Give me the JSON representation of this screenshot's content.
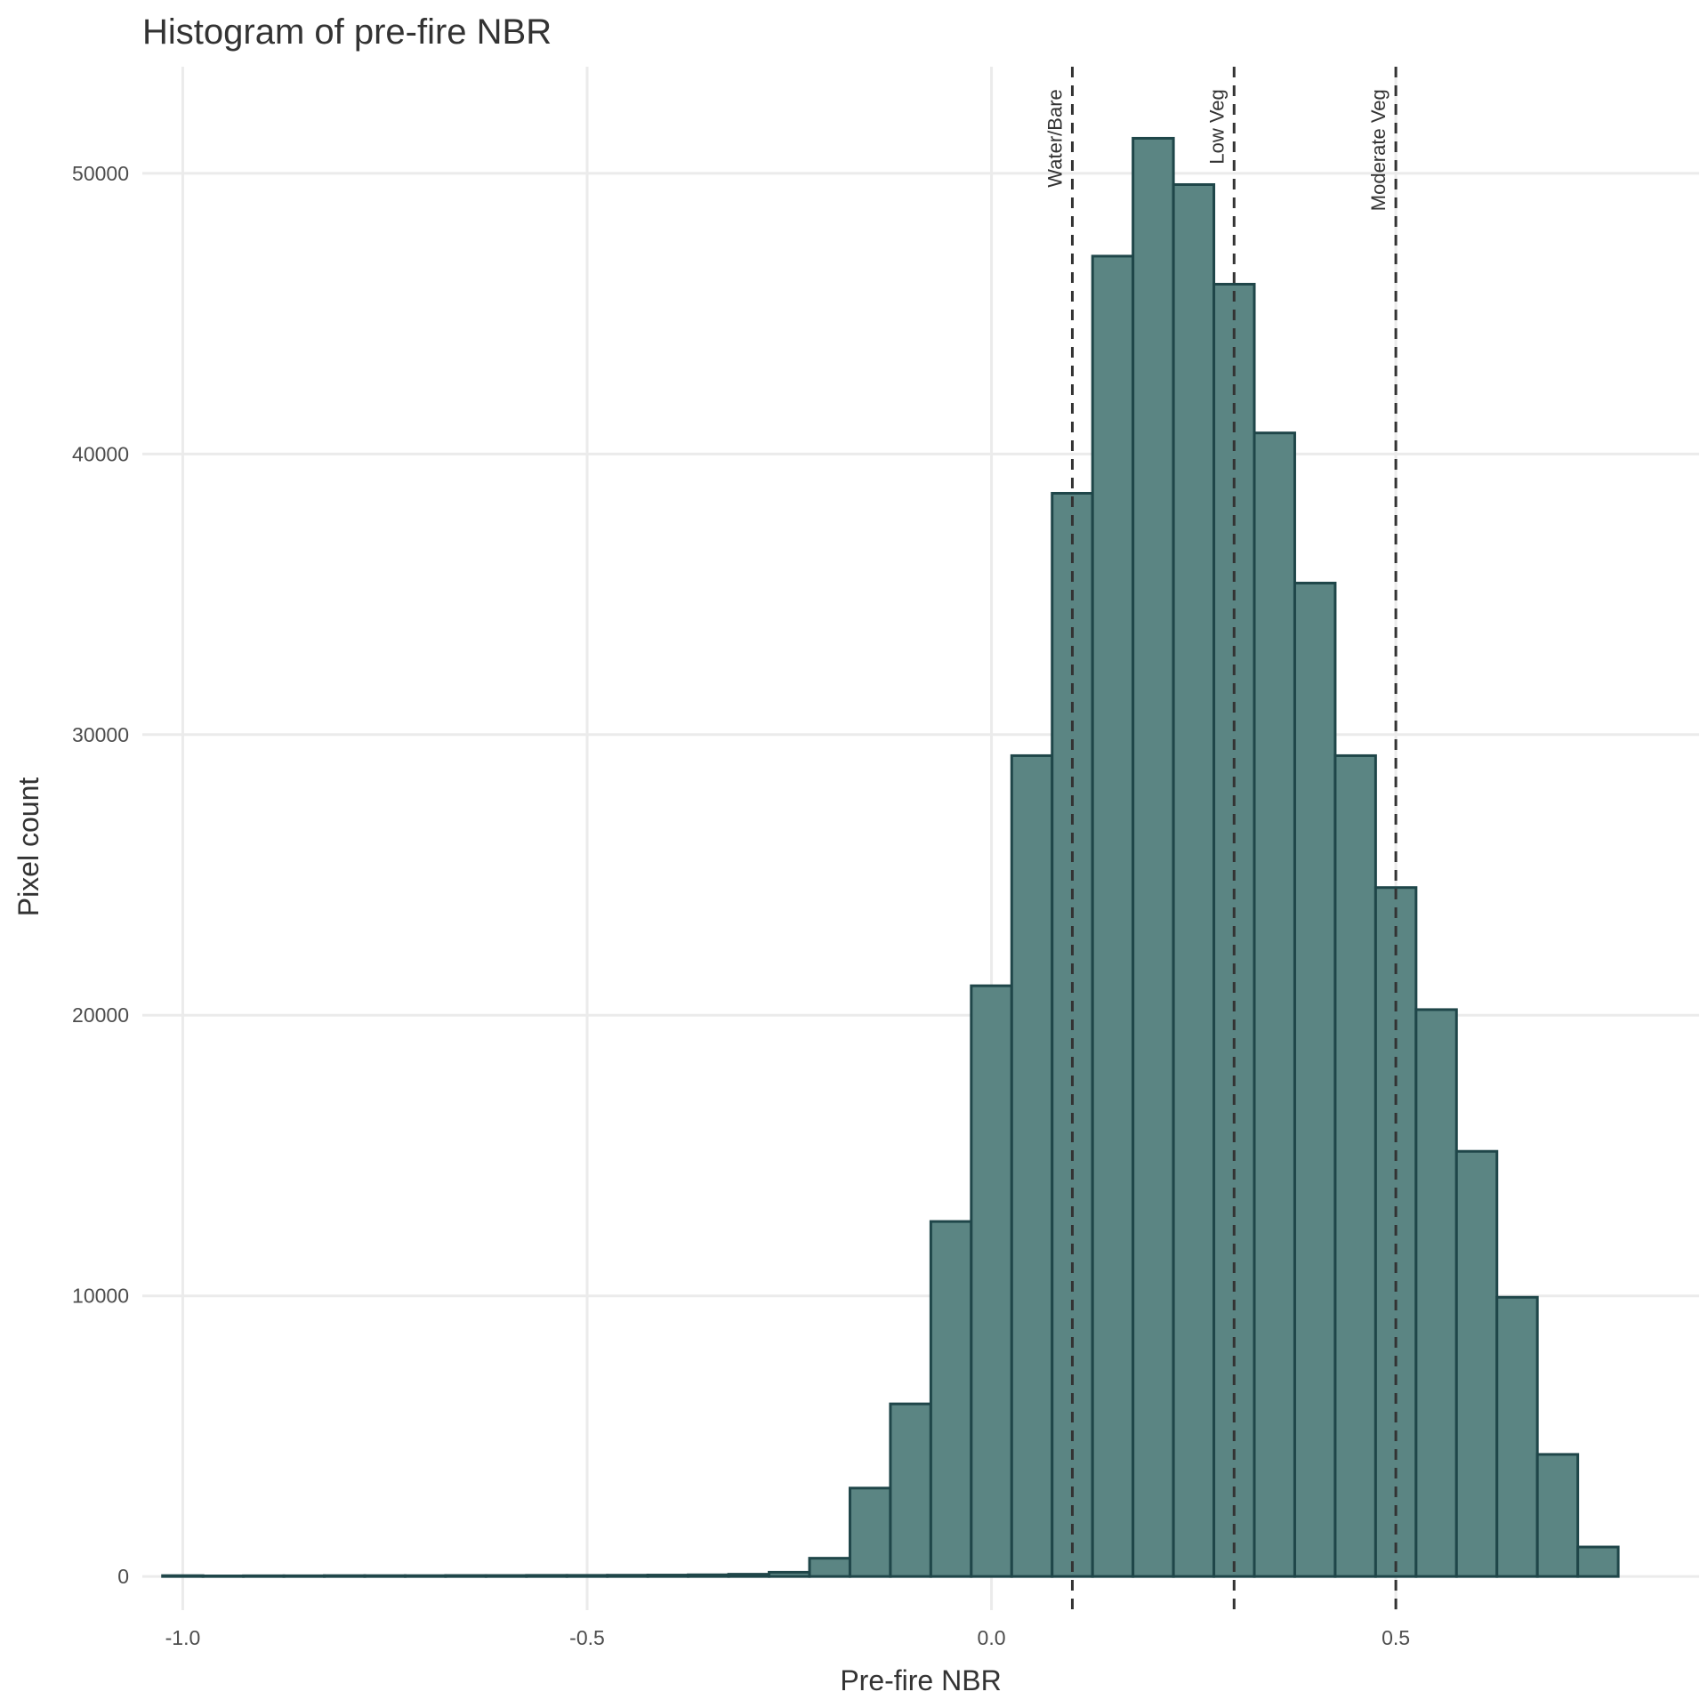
{
  "chart_data": {
    "type": "bar",
    "title": "Histogram of pre-fire NBR",
    "xlabel": "Pre-fire NBR",
    "ylabel": "Pixel count",
    "xlim": [
      -1.05,
      0.875
    ],
    "ylim": [
      -1200,
      53800
    ],
    "x_ticks": [
      -1.0,
      -0.5,
      0.0,
      0.5
    ],
    "x_tick_labels": [
      "-1.0",
      "-0.5",
      "0.0",
      "0.5"
    ],
    "y_ticks": [
      0,
      10000,
      20000,
      30000,
      40000,
      50000
    ],
    "y_tick_labels": [
      "0",
      "10000",
      "20000",
      "30000",
      "40000",
      "50000"
    ],
    "grid": true,
    "bar_fill": "#5b8583",
    "bar_stroke": "#1f4649",
    "bin_width": 0.05,
    "bins": [
      {
        "x0": -1.025,
        "x1": -0.975,
        "count": 30
      },
      {
        "x0": -0.975,
        "x1": -0.925,
        "count": 20
      },
      {
        "x0": -0.925,
        "x1": -0.875,
        "count": 25
      },
      {
        "x0": -0.875,
        "x1": -0.825,
        "count": 25
      },
      {
        "x0": -0.825,
        "x1": -0.775,
        "count": 30
      },
      {
        "x0": -0.775,
        "x1": -0.725,
        "count": 30
      },
      {
        "x0": -0.725,
        "x1": -0.675,
        "count": 30
      },
      {
        "x0": -0.675,
        "x1": -0.625,
        "count": 35
      },
      {
        "x0": -0.625,
        "x1": -0.575,
        "count": 35
      },
      {
        "x0": -0.575,
        "x1": -0.525,
        "count": 40
      },
      {
        "x0": -0.525,
        "x1": -0.475,
        "count": 40
      },
      {
        "x0": -0.475,
        "x1": -0.425,
        "count": 45
      },
      {
        "x0": -0.425,
        "x1": -0.375,
        "count": 50
      },
      {
        "x0": -0.375,
        "x1": -0.325,
        "count": 60
      },
      {
        "x0": -0.325,
        "x1": -0.275,
        "count": 80
      },
      {
        "x0": -0.275,
        "x1": -0.225,
        "count": 150
      },
      {
        "x0": -0.225,
        "x1": -0.175,
        "count": 650
      },
      {
        "x0": -0.175,
        "x1": -0.125,
        "count": 3150
      },
      {
        "x0": -0.125,
        "x1": -0.075,
        "count": 6150
      },
      {
        "x0": -0.075,
        "x1": -0.025,
        "count": 12650
      },
      {
        "x0": -0.025,
        "x1": 0.025,
        "count": 21050
      },
      {
        "x0": 0.025,
        "x1": 0.075,
        "count": 29250
      },
      {
        "x0": 0.075,
        "x1": 0.125,
        "count": 38600
      },
      {
        "x0": 0.125,
        "x1": 0.175,
        "count": 47050
      },
      {
        "x0": 0.175,
        "x1": 0.225,
        "count": 51250
      },
      {
        "x0": 0.225,
        "x1": 0.275,
        "count": 49600
      },
      {
        "x0": 0.275,
        "x1": 0.325,
        "count": 46050
      },
      {
        "x0": 0.325,
        "x1": 0.375,
        "count": 40750
      },
      {
        "x0": 0.375,
        "x1": 0.425,
        "count": 35400
      },
      {
        "x0": 0.425,
        "x1": 0.475,
        "count": 29250
      },
      {
        "x0": 0.475,
        "x1": 0.525,
        "count": 24550
      },
      {
        "x0": 0.525,
        "x1": 0.575,
        "count": 20200
      },
      {
        "x0": 0.575,
        "x1": 0.625,
        "count": 15150
      },
      {
        "x0": 0.625,
        "x1": 0.675,
        "count": 9950
      },
      {
        "x0": 0.675,
        "x1": 0.725,
        "count": 4350
      },
      {
        "x0": 0.725,
        "x1": 0.775,
        "count": 1050
      },
      {
        "x0": 0.775,
        "x1": 0.825,
        "count": 0
      }
    ],
    "reference_lines": [
      {
        "x": 0.1,
        "label": "Water/Bare",
        "label_top_y": 53000
      },
      {
        "x": 0.3,
        "label": "Low Veg",
        "label_top_y": 53000
      },
      {
        "x": 0.5,
        "label": "Moderate Veg",
        "label_top_y": 53000
      }
    ]
  }
}
